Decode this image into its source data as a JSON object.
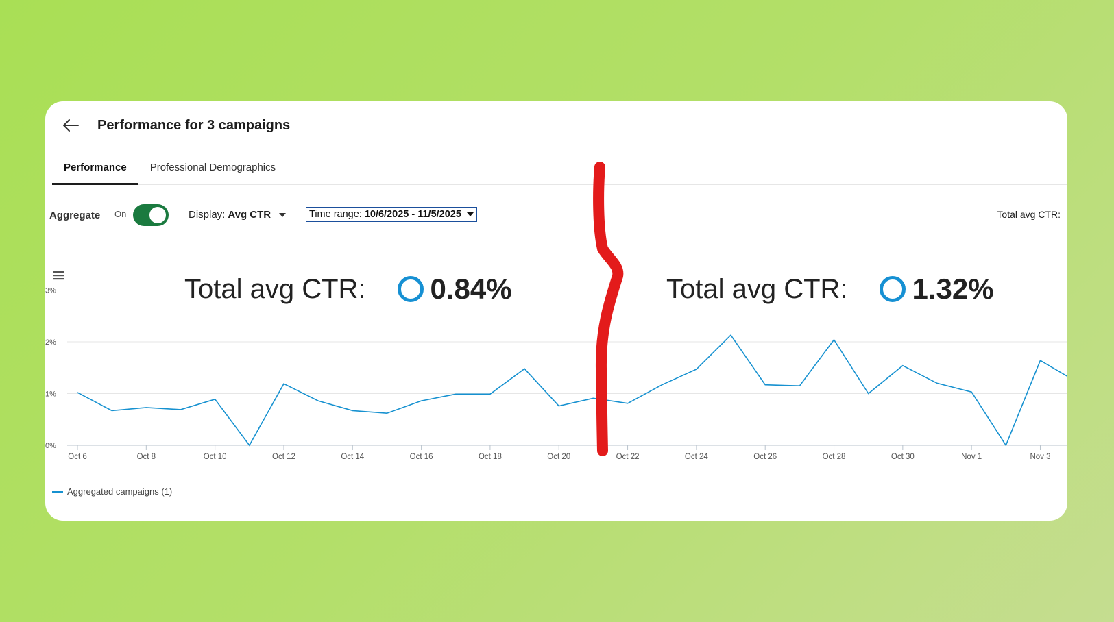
{
  "header": {
    "title": "Performance for 3 campaigns"
  },
  "tabs": [
    {
      "label": "Performance",
      "active": true
    },
    {
      "label": "Professional Demographics",
      "active": false
    }
  ],
  "controls": {
    "aggregate_label": "Aggregate",
    "toggle_state": "On",
    "display_prefix": "Display:",
    "display_value": "Avg CTR",
    "range_prefix": "Time range:",
    "range_value": "10/6/2025 - 11/5/2025",
    "total_label": "Total avg CTR:"
  },
  "overlay": {
    "left": {
      "label": "Total avg CTR:",
      "value": "0.84%"
    },
    "right": {
      "label": "Total avg CTR:",
      "value": "1.32%"
    }
  },
  "colors": {
    "series": "#1691d0",
    "toggle": "#1a7a3f",
    "ring": "#1690d3",
    "annotation": "#e31b1b",
    "background": "#b3df69"
  },
  "icons": [
    "back-arrow-icon",
    "hamburger-menu-icon",
    "chevron-down-icon"
  ],
  "chart_data": {
    "type": "line",
    "ylim": [
      0,
      3
    ],
    "yticks": [
      "0%",
      "1%",
      "2%",
      "3%"
    ],
    "xticks": [
      "Oct 6",
      "Oct 8",
      "Oct 10",
      "Oct 12",
      "Oct 14",
      "Oct 16",
      "Oct 18",
      "Oct 20",
      "Oct 22",
      "Oct 24",
      "Oct 26",
      "Oct 28",
      "Oct 30",
      "Nov 1",
      "Nov 3"
    ],
    "x": [
      "Oct 6",
      "Oct 7",
      "Oct 8",
      "Oct 9",
      "Oct 10",
      "Oct 11",
      "Oct 12",
      "Oct 13",
      "Oct 14",
      "Oct 15",
      "Oct 16",
      "Oct 17",
      "Oct 18",
      "Oct 19",
      "Oct 20",
      "Oct 21",
      "Oct 22",
      "Oct 23",
      "Oct 24",
      "Oct 25",
      "Oct 26",
      "Oct 27",
      "Oct 28",
      "Oct 29",
      "Oct 30",
      "Oct 31",
      "Nov 1",
      "Nov 2",
      "Nov 3",
      "Nov 4"
    ],
    "series": [
      {
        "name": "Aggregated campaigns (1)",
        "values": [
          1.02,
          0.67,
          0.73,
          0.69,
          0.89,
          0.0,
          1.19,
          0.86,
          0.67,
          0.62,
          0.86,
          0.99,
          0.99,
          1.48,
          0.76,
          0.91,
          0.81,
          1.17,
          1.47,
          2.13,
          1.17,
          1.15,
          2.04,
          1.0,
          1.54,
          1.2,
          1.03,
          0.0,
          1.64,
          1.25
        ]
      }
    ],
    "legend": "bottom-left",
    "grid": true
  }
}
